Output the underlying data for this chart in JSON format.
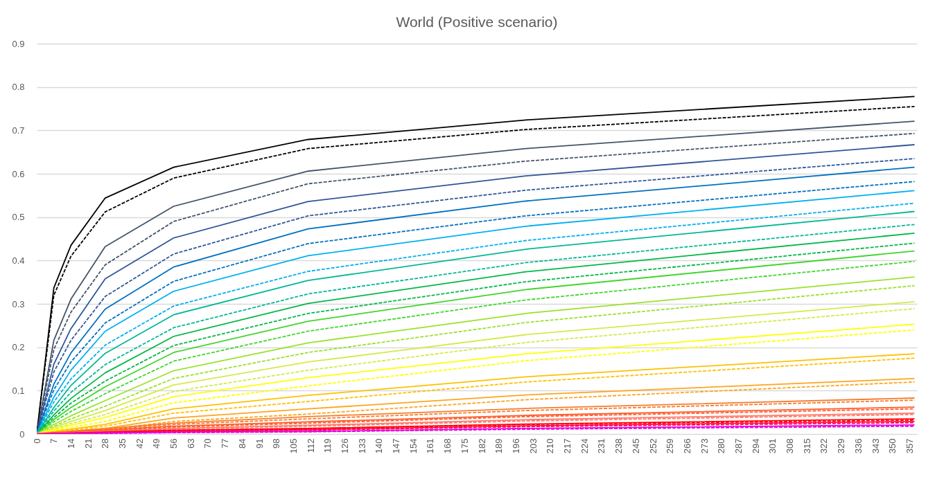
{
  "chart_data": {
    "type": "line",
    "title": "World (Positive scenario)",
    "x": [
      0,
      7,
      14,
      28,
      56,
      111,
      200,
      359
    ],
    "xlim": [
      0,
      360
    ],
    "xticks": [
      0,
      7,
      14,
      21,
      28,
      35,
      42,
      49,
      56,
      63,
      70,
      77,
      84,
      91,
      98,
      105,
      112,
      119,
      126,
      133,
      140,
      147,
      154,
      161,
      168,
      175,
      182,
      189,
      196,
      203,
      210,
      217,
      224,
      231,
      238,
      245,
      252,
      259,
      266,
      273,
      280,
      287,
      294,
      301,
      308,
      315,
      322,
      329,
      336,
      343,
      350,
      357
    ],
    "ylim": [
      0,
      0.9
    ],
    "yticks": [
      0,
      0.1,
      0.2,
      0.3,
      0.4,
      0.5,
      0.6,
      0.7,
      0.8,
      0.9
    ],
    "grid": "y",
    "series": [
      {
        "color": "#000000",
        "line_style": "solid",
        "values": [
          0,
          0.337,
          0.435,
          0.544,
          0.615,
          0.679,
          0.724,
          0.778
        ]
      },
      {
        "color": "#000000",
        "line_style": "dashed",
        "values": [
          0,
          0.32,
          0.41,
          0.512,
          0.59,
          0.658,
          0.702,
          0.755
        ]
      },
      {
        "color": "#44546a",
        "line_style": "solid",
        "values": [
          0,
          0.216,
          0.311,
          0.432,
          0.525,
          0.606,
          0.658,
          0.721
        ]
      },
      {
        "color": "#44546a",
        "line_style": "dashed",
        "values": [
          0,
          0.195,
          0.281,
          0.39,
          0.49,
          0.577,
          0.629,
          0.693
        ]
      },
      {
        "color": "#2f5597",
        "line_style": "solid",
        "values": [
          0,
          0.161,
          0.243,
          0.358,
          0.452,
          0.536,
          0.595,
          0.667
        ]
      },
      {
        "color": "#2f5597",
        "line_style": "dashed",
        "values": [
          0,
          0.143,
          0.216,
          0.317,
          0.415,
          0.503,
          0.562,
          0.635
        ]
      },
      {
        "color": "#0070c0",
        "line_style": "solid",
        "values": [
          0,
          0.115,
          0.187,
          0.288,
          0.385,
          0.473,
          0.537,
          0.615
        ]
      },
      {
        "color": "#0070c0",
        "line_style": "dashed",
        "values": [
          0,
          0.102,
          0.166,
          0.256,
          0.352,
          0.439,
          0.503,
          0.582
        ]
      },
      {
        "color": "#00b0f0",
        "line_style": "solid",
        "values": [
          0,
          0.085,
          0.147,
          0.237,
          0.329,
          0.411,
          0.479,
          0.561
        ]
      },
      {
        "color": "#00b0f0",
        "line_style": "dashed",
        "values": [
          0,
          0.074,
          0.127,
          0.205,
          0.295,
          0.375,
          0.446,
          0.532
        ]
      },
      {
        "color": "#00b894",
        "line_style": "solid",
        "values": [
          0,
          0.061,
          0.112,
          0.186,
          0.275,
          0.354,
          0.426,
          0.513
        ]
      },
      {
        "color": "#00b894",
        "line_style": "dashed",
        "values": [
          0,
          0.053,
          0.096,
          0.16,
          0.245,
          0.323,
          0.395,
          0.483
        ]
      },
      {
        "color": "#00b845",
        "line_style": "solid",
        "values": [
          0,
          0.044,
          0.082,
          0.141,
          0.225,
          0.301,
          0.374,
          0.463
        ]
      },
      {
        "color": "#00b845",
        "line_style": "dashed",
        "values": [
          0,
          0.038,
          0.071,
          0.122,
          0.204,
          0.278,
          0.351,
          0.44
        ]
      },
      {
        "color": "#3ed62a",
        "line_style": "solid",
        "values": [
          0,
          0.033,
          0.061,
          0.109,
          0.188,
          0.26,
          0.333,
          0.422
        ]
      },
      {
        "color": "#3ed62a",
        "line_style": "dashed",
        "values": [
          0,
          0.028,
          0.052,
          0.093,
          0.168,
          0.237,
          0.309,
          0.398
        ]
      },
      {
        "color": "#99e22a",
        "line_style": "solid",
        "values": [
          0,
          0.022,
          0.042,
          0.077,
          0.146,
          0.21,
          0.278,
          0.362
        ]
      },
      {
        "color": "#99e22a",
        "line_style": "dashed",
        "values": [
          0,
          0.018,
          0.035,
          0.064,
          0.128,
          0.188,
          0.257,
          0.342
        ]
      },
      {
        "color": "#d4ea48",
        "line_style": "solid",
        "values": [
          0,
          0.015,
          0.029,
          0.054,
          0.113,
          0.166,
          0.229,
          0.305
        ]
      },
      {
        "color": "#d4ea48",
        "line_style": "dashed",
        "values": [
          0,
          0.012,
          0.024,
          0.045,
          0.098,
          0.147,
          0.211,
          0.289
        ]
      },
      {
        "color": "#ffff00",
        "line_style": "solid",
        "values": [
          0,
          0.01,
          0.02,
          0.038,
          0.086,
          0.13,
          0.185,
          0.253
        ]
      },
      {
        "color": "#ffff00",
        "line_style": "dashed",
        "values": [
          0,
          0.008,
          0.015,
          0.029,
          0.072,
          0.111,
          0.169,
          0.24
        ]
      },
      {
        "color": "#ffc000",
        "line_style": "solid",
        "x": [
          0,
          28,
          56,
          111,
          200,
          359
        ],
        "values": [
          0,
          0.022,
          0.058,
          0.089,
          0.132,
          0.185
        ]
      },
      {
        "color": "#ffc000",
        "line_style": "dashed",
        "x": [
          0,
          28,
          56,
          111,
          200,
          359
        ],
        "values": [
          0,
          0.018,
          0.048,
          0.075,
          0.12,
          0.175
        ]
      },
      {
        "color": "#ffa41c",
        "line_style": "solid",
        "x": [
          0,
          28,
          56,
          111,
          200,
          359
        ],
        "values": [
          0,
          0.013,
          0.037,
          0.058,
          0.09,
          0.128
        ]
      },
      {
        "color": "#ffa41c",
        "line_style": "dashed",
        "x": [
          0,
          28,
          56,
          111,
          200,
          359
        ],
        "values": [
          0,
          0.01,
          0.029,
          0.046,
          0.079,
          0.12
        ]
      },
      {
        "color": "#f57c2c",
        "line_style": "solid",
        "x": [
          0,
          56,
          111,
          200,
          359
        ],
        "values": [
          0,
          0.025,
          0.04,
          0.059,
          0.083
        ]
      },
      {
        "color": "#f57c2c",
        "line_style": "dashed",
        "x": [
          0,
          56,
          111,
          200,
          359
        ],
        "values": [
          0,
          0.022,
          0.035,
          0.054,
          0.078
        ]
      },
      {
        "color": "#ff5a28",
        "line_style": "solid",
        "x": [
          0,
          56,
          111,
          200,
          359
        ],
        "values": [
          0,
          0.018,
          0.028,
          0.043,
          0.062
        ]
      },
      {
        "color": "#ff5a28",
        "line_style": "dashed",
        "x": [
          0,
          56,
          111,
          200,
          359
        ],
        "values": [
          0,
          0.016,
          0.025,
          0.04,
          0.058
        ]
      },
      {
        "color": "#ff7a6a",
        "line_style": "solid",
        "x": [
          0,
          56,
          111,
          200,
          359
        ],
        "values": [
          0,
          0.013,
          0.02,
          0.033,
          0.048
        ]
      },
      {
        "color": "#ff7a6a",
        "line_style": "dashed",
        "x": [
          0,
          56,
          111,
          200,
          359
        ],
        "values": [
          0,
          0.012,
          0.018,
          0.03,
          0.045
        ]
      },
      {
        "color": "#ff0000",
        "line_style": "solid",
        "x": [
          0,
          56,
          111,
          200,
          359
        ],
        "values": [
          0,
          0.009,
          0.013,
          0.023,
          0.035
        ]
      },
      {
        "color": "#ff0000",
        "line_style": "dashed",
        "x": [
          0,
          56,
          111,
          200,
          359
        ],
        "values": [
          0,
          0.007,
          0.012,
          0.022,
          0.032
        ]
      },
      {
        "color": "#ff0a50",
        "line_style": "solid",
        "x": [
          0,
          56,
          111,
          200,
          359
        ],
        "values": [
          0,
          0.006,
          0.01,
          0.019,
          0.029
        ]
      },
      {
        "color": "#ff0a50",
        "line_style": "dashed",
        "x": [
          0,
          56,
          111,
          200,
          359
        ],
        "values": [
          0,
          0.005,
          0.009,
          0.017,
          0.026
        ]
      },
      {
        "color": "#e600e6",
        "line_style": "solid",
        "x": [
          0,
          56,
          111,
          200,
          359
        ],
        "values": [
          0,
          0.004,
          0.006,
          0.013,
          0.021
        ]
      },
      {
        "color": "#e600e6",
        "line_style": "dashed",
        "x": [
          0,
          56,
          111,
          200,
          359
        ],
        "values": [
          0,
          0.003,
          0.005,
          0.011,
          0.018
        ]
      }
    ]
  }
}
